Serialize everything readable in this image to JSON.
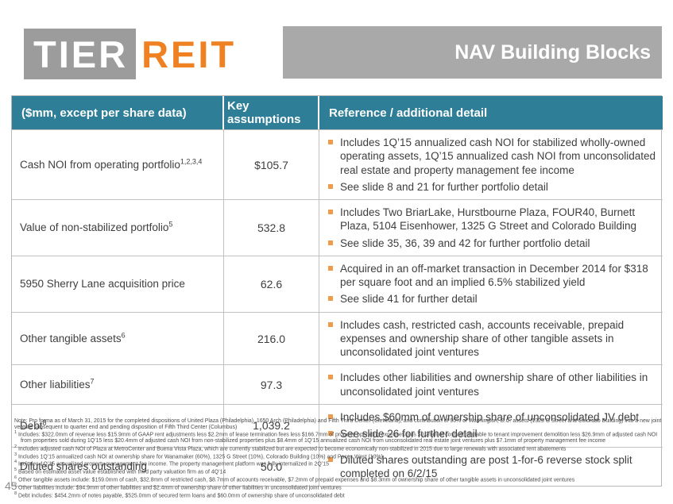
{
  "logo": {
    "tier": "TIER",
    "reit": "REIT"
  },
  "header": {
    "title": "NAV Building Blocks"
  },
  "colors": {
    "teal_header": "#2e7e98",
    "banner_gray": "#a9a9a9",
    "logo_gray": "#9c9c9c",
    "brand_orange": "#ef8122",
    "bullet_orange": "#f09b4c"
  },
  "table": {
    "columns": {
      "col1": "($mm, except per share data)",
      "col2": "Key assumptions",
      "col3": "Reference / additional detail"
    },
    "rows": [
      {
        "label": "Cash NOI from operating portfolio",
        "sup": "1,2,3,4",
        "value": "$105.7",
        "bullets": [
          "Includes 1Q’15 annualized cash NOI for stabilized wholly-owned operating assets, 1Q’15 annualized cash NOI from unconsolidated real estate and property management fee income",
          "See slide 8 and 21 for further portfolio detail"
        ]
      },
      {
        "label": "Value of non-stabilized portfolio",
        "sup": "5",
        "value": "532.8",
        "bullets": [
          "Includes Two BriarLake, Hurstbourne Plaza, FOUR40, Burnett Plaza, 5104 Eisenhower, 1325 G Street and Colorado Building",
          "See slide 35, 36, 39 and 42 for further portfolio detail"
        ]
      },
      {
        "label": "5950 Sherry Lane acquisition price",
        "sup": "",
        "value": "62.6",
        "bullets": [
          "Acquired in an off-market transaction in December 2014 for $318 per square foot and an implied 6.5% stabilized yield",
          "See slide 41 for further detail"
        ]
      },
      {
        "label": "Other tangible assets",
        "sup": "6",
        "value": "216.0",
        "bullets": [
          "Includes cash, restricted cash, accounts receivable, prepaid expenses and ownership share of other tangible assets in unconsolidated joint ventures"
        ]
      },
      {
        "label": "Other liabilities",
        "sup": "7",
        "value": "97.3",
        "bullets": [
          "Includes other liabilities and ownership share of other liabilities in unconsolidated joint ventures"
        ]
      },
      {
        "label": "Debt",
        "sup": "8",
        "value": "1,039.2",
        "bullets": [
          "Includes $60mm of ownership share of unconsolidated JV debt",
          "See slide 26 for further detail"
        ]
      },
      {
        "label": "Diluted shares outstanding",
        "sup": "",
        "value": "50.0",
        "bullets": [
          "Diluted shares outstanding are post 1-for-6 reverse stock split completed on 6/2/15"
        ]
      }
    ]
  },
  "footnotes": {
    "note": "Note: Pro forma as of March 31, 2015 for the completed dispositions of United Plaza (Philadelphia), 1650 Arch (Philadelphia) and Fifth Third Center (Cleveland), and contribution of 90% of Washington, D.C. assets (1325 G Street and Colorado Building) into a new joint venture subsequent to quarter end and pending disposition of Fifth Third Center (Columbus)",
    "items": [
      {
        "n": "1",
        "text": "Includes: $322.0mm of revenue less $15.9mm of GAAP rent adjustments less $2.2mm of lease termination fees less $166.7mm of property operating expenses plus $0.2mm of costs attributable to tenant improvement demolition less $26.9mm of adjusted cash NOI from properties sold during 1Q’15 less $20.4mm of adjusted cash NOI from non-stabilized properties plus $8.4mm of 1Q’15 annualized cash NOI from unconsolidated real estate joint ventures plus $7.1mm of property management fee income"
      },
      {
        "n": "2",
        "text": "Includes adjusted cash NOI of Plaza at MetroCenter and Buena Vista Plaza, which are currently stabilized but are expected to become economically non-stabilized in 2015 due to large renewals with associated rent abatements"
      },
      {
        "n": "3",
        "text": "Includes 1Q’15 annualized cash NOI at ownership share for Wanamaker (60%), 1325 G Street (10%), Colorado Building (10%) and Paces West (10%)"
      },
      {
        "n": "4",
        "text": "Includes 1Q’15 annualized property management fee income. The property management platform was fully internalized in 2Q’15"
      },
      {
        "n": "5",
        "text": "Based on estimated asset value established with third party valuation firm as of 4Q’14"
      },
      {
        "n": "6",
        "text": "Other tangible assets include: $159.0mm of cash, $32.8mm of restricted cash, $8.7mm of accounts receivable, $7.2mm of prepaid expenses and $8.3mm of ownership share of other tangible assets in unconsolidated joint ventures"
      },
      {
        "n": "7",
        "text": "Other liabilities include: $94.9mm of other liabilities and $2.4mm of ownership share of other liabilities in unconsolidated joint ventures"
      },
      {
        "n": "8",
        "text": "Debt includes: $454.2mm of notes payable, $525.0mm of secured term loans and $60.0mm of ownership share of unconsolidated debt"
      }
    ]
  },
  "page_number": "45"
}
